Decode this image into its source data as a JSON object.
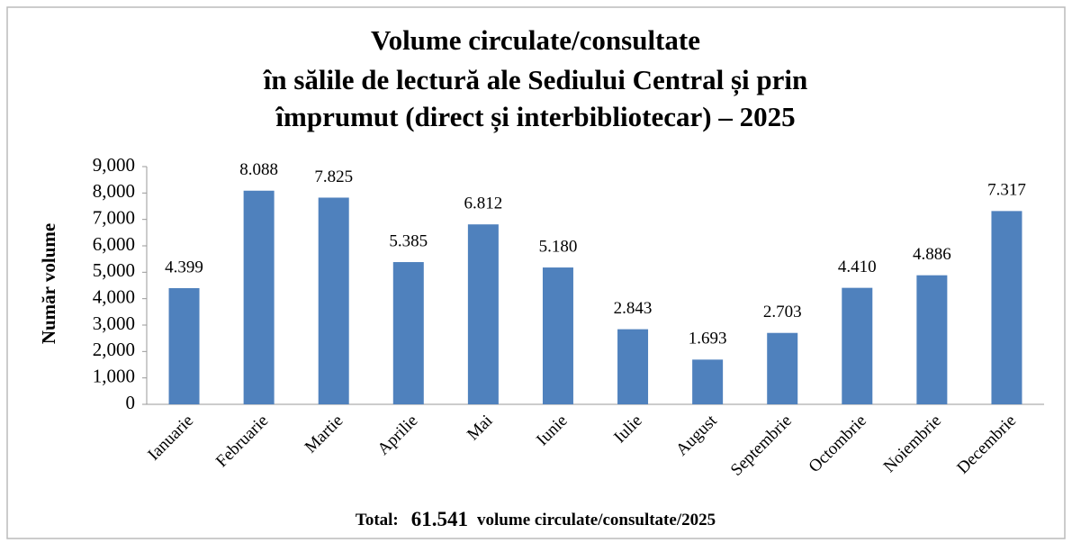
{
  "chart_data": {
    "type": "bar",
    "title": [
      "Volume circulate/consultate",
      "în sălile de lectură ale Sediului Central și prin",
      "împrumut (direct și interbibliotecar) – 2025"
    ],
    "ylabel": "Număr volume",
    "categories": [
      "Ianuarie",
      "Februarie",
      "Martie",
      "Aprilie",
      "Mai",
      "Iunie",
      "Iulie",
      "August",
      "Septembrie",
      "Octombrie",
      "Noiembrie",
      "Decembrie"
    ],
    "values": [
      4399,
      8088,
      7825,
      5385,
      6812,
      5180,
      2843,
      1693,
      2703,
      4410,
      4886,
      7317
    ],
    "value_labels": [
      "4.399",
      "8.088",
      "7.825",
      "5.385",
      "6.812",
      "5.180",
      "2.843",
      "1.693",
      "2.703",
      "4.410",
      "4.886",
      "7.317"
    ],
    "color": "#4f81bd",
    "ylim": [
      0,
      9000
    ],
    "yticks": [
      0,
      {
        "value": 1000,
        "label": "1,000"
      },
      {
        "value": 2000,
        "label": "2,000"
      },
      {
        "value": 3000,
        "label": "3,000"
      },
      {
        "value": 4000,
        "label": "4,000"
      },
      {
        "value": 5000,
        "label": "5,000"
      },
      {
        "value": 6000,
        "label": "6,000"
      },
      {
        "value": 7000,
        "label": "7,000"
      },
      {
        "value": 8000,
        "label": "8,000"
      },
      {
        "value": 9000,
        "label": "9,000"
      }
    ],
    "grid": false,
    "footer": [
      "Total:",
      "61.541",
      "volume circulate/consultate/2025"
    ]
  }
}
